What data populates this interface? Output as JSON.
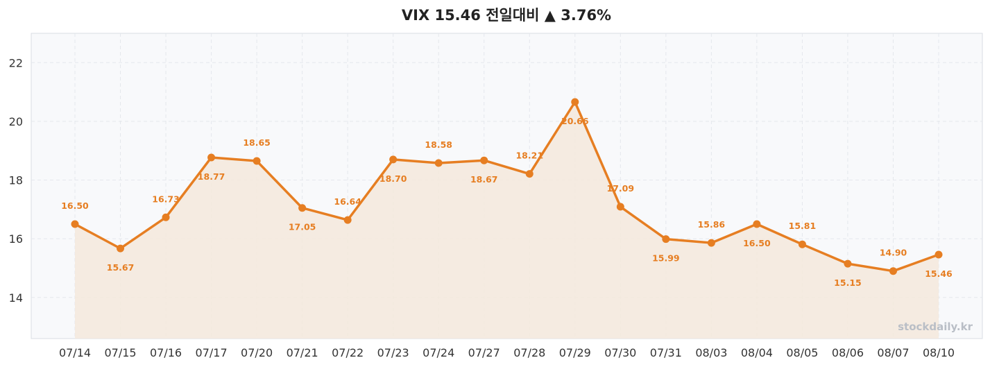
{
  "title": "VIX 15.46 전일대비 ▲ 3.76%",
  "watermark": "stockdaily.kr",
  "colors": {
    "line": "#e67e22",
    "fill": "#f5e9dc",
    "plot_background": "#f8f9fb",
    "grid": "#e4e7ec",
    "frame": "#d9dde3"
  },
  "chart_data": {
    "type": "line",
    "title": "VIX 15.46 전일대비 ▲ 3.76%",
    "xlabel": "",
    "ylabel": "",
    "ylim": [
      12.6,
      23.0
    ],
    "yticks": [
      14,
      16,
      18,
      20,
      22
    ],
    "grid": true,
    "categories": [
      "07/14",
      "07/15",
      "07/16",
      "07/17",
      "07/20",
      "07/21",
      "07/22",
      "07/23",
      "07/24",
      "07/27",
      "07/28",
      "07/29",
      "07/30",
      "07/31",
      "08/03",
      "08/04",
      "08/05",
      "08/06",
      "08/07",
      "08/10"
    ],
    "series": [
      {
        "values": [
          16.5,
          15.67,
          16.73,
          18.77,
          18.65,
          17.05,
          16.64,
          18.7,
          18.58,
          18.67,
          18.21,
          20.66,
          17.09,
          15.99,
          15.86,
          16.5,
          15.81,
          15.15,
          14.9,
          15.46
        ],
        "labels": [
          "16.50",
          "15.67",
          "16.73",
          "18.77",
          "18.65",
          "17.05",
          "16.64",
          "18.70",
          "18.58",
          "18.67",
          "18.21",
          "20.66",
          "17.09",
          "15.99",
          "15.86",
          "16.50",
          "15.81",
          "15.15",
          "14.90",
          "15.46"
        ],
        "label_positions": [
          "above",
          "below",
          "above",
          "below",
          "above",
          "below",
          "above",
          "below",
          "above",
          "below",
          "above",
          "below",
          "above",
          "below",
          "above",
          "below",
          "above",
          "below",
          "above",
          "below"
        ]
      }
    ]
  }
}
